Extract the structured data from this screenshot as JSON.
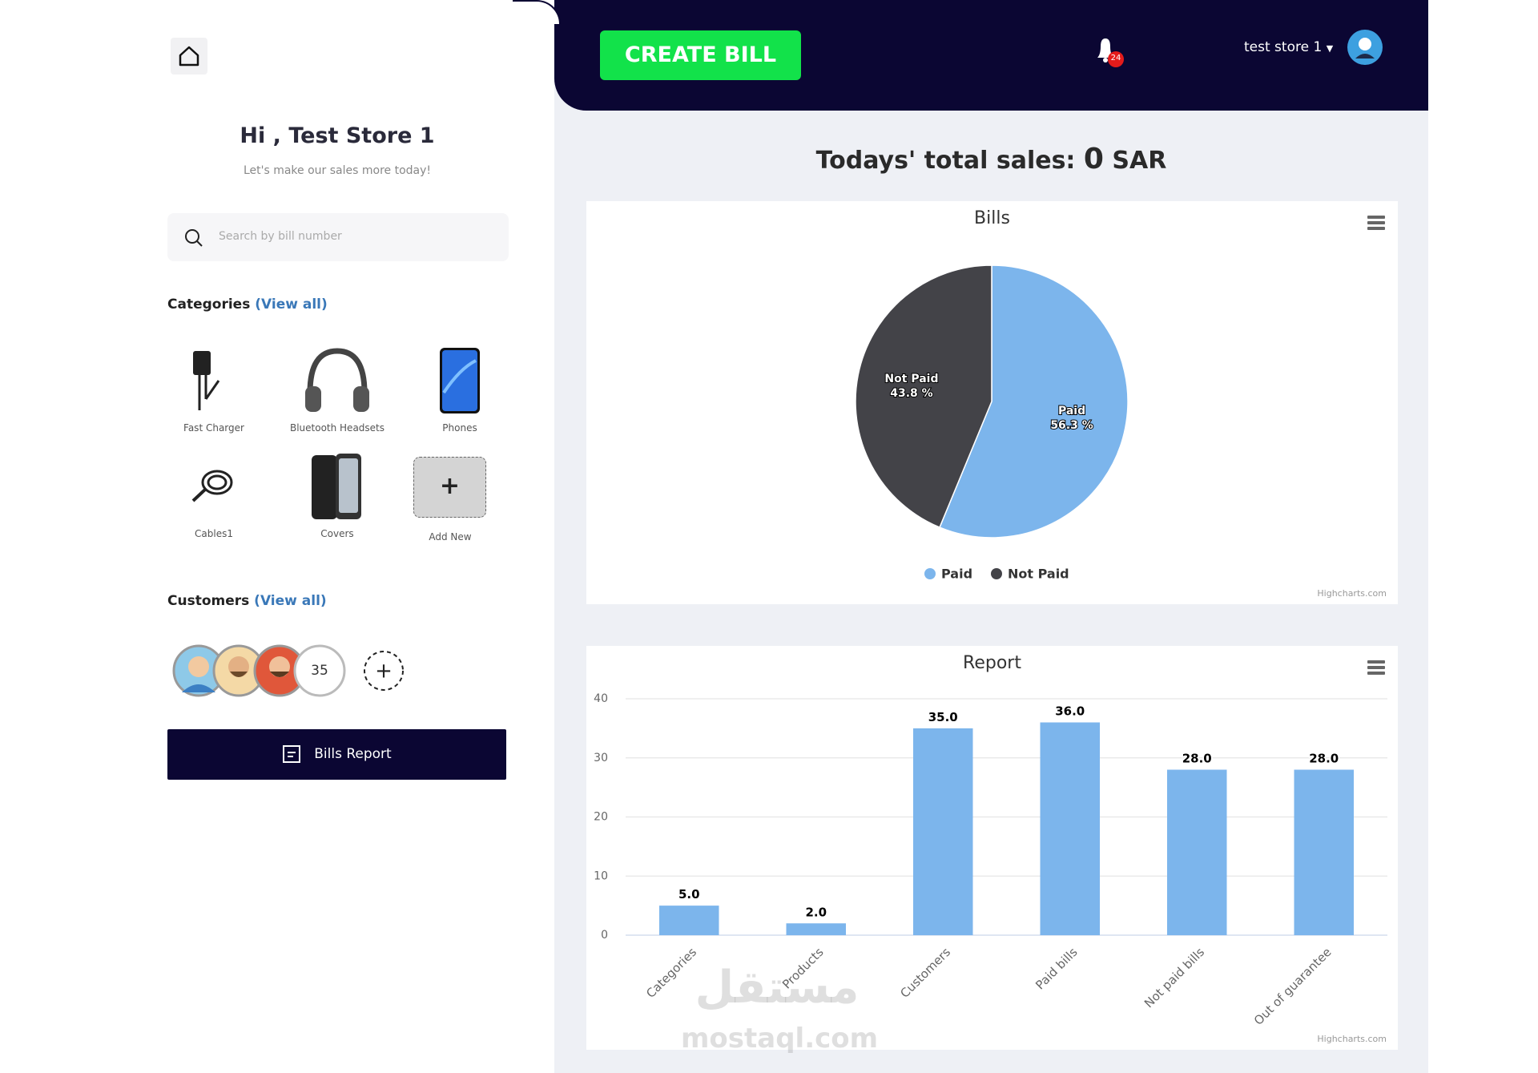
{
  "sidebar": {
    "greeting": "Hi , Test Store 1",
    "subtitle": "Let's make our sales more today!",
    "search_placeholder": "Search by bill number",
    "categories_heading": "Categories",
    "categories_view_all": "(View all)",
    "categories": [
      "Fast Charger",
      "Bluetooth Headsets",
      "Phones",
      "Cables1",
      "Covers"
    ],
    "add_new": "Add New",
    "customers_heading": "Customers",
    "customers_view_all": "(View all)",
    "customers_count": 35,
    "bills_report": "Bills Report"
  },
  "header": {
    "create_bill": "CREATE BILL",
    "notifications": 24,
    "store_name": "test store 1"
  },
  "sales": {
    "label": "Todays' total sales:",
    "amount": 0,
    "currency": "SAR"
  },
  "watermark": {
    "arabic": "مستقل",
    "latin": "mostaql.com"
  },
  "chart_data": [
    {
      "type": "pie",
      "title": "Bills",
      "categories": [
        "Paid",
        "Not Paid"
      ],
      "values": [
        56.3,
        43.8
      ],
      "value_labels": [
        "56.3 %",
        "43.8 %"
      ],
      "colors": [
        "#7cb5ec",
        "#434348"
      ],
      "legend": "bottom",
      "credits": "Highcharts.com"
    },
    {
      "type": "bar",
      "title": "Report",
      "categories": [
        "Categories",
        "Products",
        "Customers",
        "Paid bills",
        "Not paid bills",
        "Out of guarantee"
      ],
      "values": [
        5,
        2,
        35,
        36,
        28,
        28
      ],
      "value_labels": [
        "5.0",
        "2.0",
        "35.0",
        "36.0",
        "28.0",
        "28.0"
      ],
      "color": "#7cb5ec",
      "ylim": [
        0,
        40
      ],
      "yticks": [
        0,
        10,
        20,
        30,
        40
      ],
      "grid": true,
      "credits": "Highcharts.com"
    }
  ]
}
